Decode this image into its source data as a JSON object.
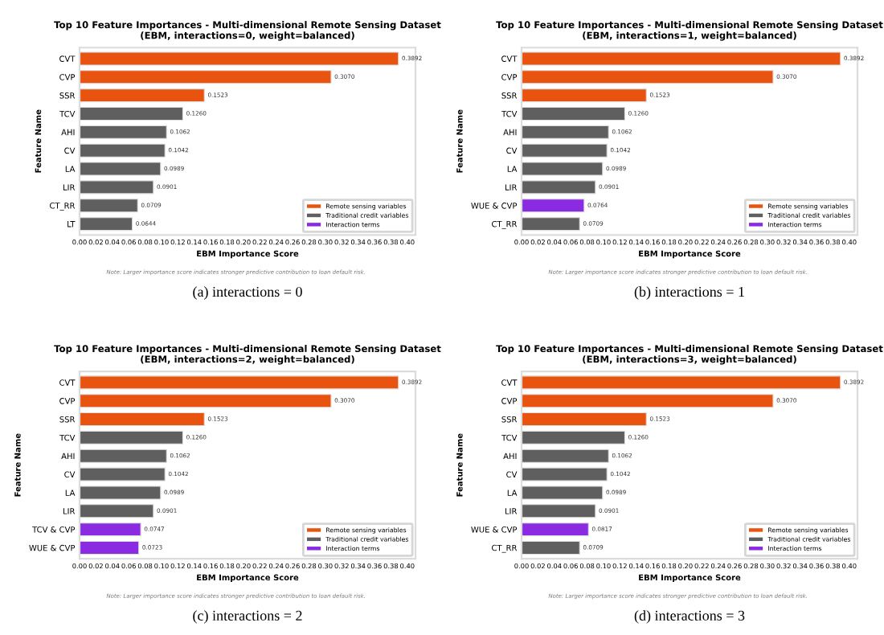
{
  "chart_data": [
    {
      "type": "bar",
      "orientation": "horizontal",
      "title": "Top 10 Feature Importances - Multi-dimensional Remote Sensing Dataset\n(EBM, interactions=0, weight=balanced)",
      "xlabel": "EBM Importance Score",
      "ylabel": "Feature Name",
      "categories": [
        "CVT",
        "CVP",
        "SSR",
        "TCV",
        "AHI",
        "CV",
        "LA",
        "LIR",
        "CT_RR",
        "LT"
      ],
      "series": [
        {
          "name": "Remote sensing variables",
          "color": "#e8540f",
          "values": [
            0.3892,
            0.307,
            0.1523,
            null,
            null,
            null,
            null,
            null,
            null,
            null
          ],
          "value_labels": [
            "0.3892",
            "0.3070",
            "0.1523",
            null,
            null,
            null,
            null,
            null,
            null,
            null
          ]
        },
        {
          "name": "Traditional credit variables",
          "color": "#5f5f5f",
          "values": [
            null,
            null,
            null,
            0.126,
            0.1062,
            0.1042,
            0.0989,
            0.0901,
            0.0709,
            0.0644
          ],
          "value_labels": [
            null,
            null,
            null,
            "0.1260",
            "0.1062",
            "0.1042",
            "0.0989",
            "0.0901",
            "0.0709",
            "0.0644"
          ]
        },
        {
          "name": "Interaction terms",
          "color": "#8a2be2",
          "values": [
            null,
            null,
            null,
            null,
            null,
            null,
            null,
            null,
            null,
            null
          ],
          "value_labels": [
            null,
            null,
            null,
            null,
            null,
            null,
            null,
            null,
            null,
            null
          ]
        }
      ],
      "xlim": [
        0,
        0.41
      ],
      "xticks": [
        {
          "value": 0,
          "label": "0.00"
        },
        {
          "value": 0.02,
          "label": "0.02"
        },
        {
          "value": 0.04,
          "label": "0.04"
        },
        {
          "value": 0.06,
          "label": "0.06"
        },
        {
          "value": 0.08,
          "label": "0.08"
        },
        {
          "value": 0.1,
          "label": "0.10"
        },
        {
          "value": 0.12,
          "label": "0.12"
        },
        {
          "value": 0.14,
          "label": "0.14"
        },
        {
          "value": 0.16,
          "label": "0.16"
        },
        {
          "value": 0.18,
          "label": "0.18"
        },
        {
          "value": 0.2,
          "label": "0.20"
        },
        {
          "value": 0.22,
          "label": "0.22"
        },
        {
          "value": 0.24,
          "label": "0.24"
        },
        {
          "value": 0.26,
          "label": "0.26"
        },
        {
          "value": 0.28,
          "label": "0.28"
        },
        {
          "value": 0.3,
          "label": "0.30"
        },
        {
          "value": 0.32,
          "label": "0.32"
        },
        {
          "value": 0.34,
          "label": "0.34"
        },
        {
          "value": 0.36,
          "label": "0.36"
        },
        {
          "value": 0.38,
          "label": "0.38"
        },
        {
          "value": 0.4,
          "label": "0.40"
        }
      ],
      "legend": "bottom right",
      "grid": false,
      "annotations": [
        "Note: Larger importance score indicates stronger predictive contribution to loan default risk.",
        "(a) interactions = 0"
      ]
    },
    {
      "type": "bar",
      "orientation": "horizontal",
      "title": "Top 10 Feature Importances - Multi-dimensional Remote Sensing Dataset\n(EBM, interactions=1, weight=balanced)",
      "xlabel": "EBM Importance Score",
      "ylabel": "Feature Name",
      "categories": [
        "CVT",
        "CVP",
        "SSR",
        "TCV",
        "AHI",
        "CV",
        "LA",
        "LIR",
        "WUE & CVP",
        "CT_RR"
      ],
      "series": [
        {
          "name": "Remote sensing variables",
          "color": "#e8540f",
          "values": [
            0.3892,
            0.307,
            0.1523,
            null,
            null,
            null,
            null,
            null,
            null,
            null
          ],
          "value_labels": [
            "0.3892",
            "0.3070",
            "0.1523",
            null,
            null,
            null,
            null,
            null,
            null,
            null
          ]
        },
        {
          "name": "Traditional credit variables",
          "color": "#5f5f5f",
          "values": [
            null,
            null,
            null,
            0.126,
            0.1062,
            0.1042,
            0.0989,
            0.0901,
            null,
            0.0709
          ],
          "value_labels": [
            null,
            null,
            null,
            "0.1260",
            "0.1062",
            "0.1042",
            "0.0989",
            "0.0901",
            null,
            "0.0709"
          ]
        },
        {
          "name": "Interaction terms",
          "color": "#8a2be2",
          "values": [
            null,
            null,
            null,
            null,
            null,
            null,
            null,
            null,
            0.0764,
            null
          ],
          "value_labels": [
            null,
            null,
            null,
            null,
            null,
            null,
            null,
            null,
            "0.0764",
            null
          ]
        }
      ],
      "xlim": [
        0,
        0.41
      ],
      "xticks": [
        {
          "value": 0,
          "label": "0.00"
        },
        {
          "value": 0.02,
          "label": "0.02"
        },
        {
          "value": 0.04,
          "label": "0.04"
        },
        {
          "value": 0.06,
          "label": "0.06"
        },
        {
          "value": 0.08,
          "label": "0.08"
        },
        {
          "value": 0.1,
          "label": "0.10"
        },
        {
          "value": 0.12,
          "label": "0.12"
        },
        {
          "value": 0.14,
          "label": "0.14"
        },
        {
          "value": 0.16,
          "label": "0.16"
        },
        {
          "value": 0.18,
          "label": "0.18"
        },
        {
          "value": 0.2,
          "label": "0.20"
        },
        {
          "value": 0.22,
          "label": "0.22"
        },
        {
          "value": 0.24,
          "label": "0.24"
        },
        {
          "value": 0.26,
          "label": "0.26"
        },
        {
          "value": 0.28,
          "label": "0.28"
        },
        {
          "value": 0.3,
          "label": "0.30"
        },
        {
          "value": 0.32,
          "label": "0.32"
        },
        {
          "value": 0.34,
          "label": "0.34"
        },
        {
          "value": 0.36,
          "label": "0.36"
        },
        {
          "value": 0.38,
          "label": "0.38"
        },
        {
          "value": 0.4,
          "label": "0.40"
        }
      ],
      "legend": "bottom right",
      "grid": false,
      "annotations": [
        "Note: Larger importance score indicates stronger predictive contribution to loan default risk.",
        "(b) interactions = 1"
      ]
    },
    {
      "type": "bar",
      "orientation": "horizontal",
      "title": "Top 10 Feature Importances - Multi-dimensional Remote Sensing Dataset\n(EBM, interactions=2, weight=balanced)",
      "xlabel": "EBM Importance Score",
      "ylabel": "Feature Name",
      "categories": [
        "CVT",
        "CVP",
        "SSR",
        "TCV",
        "AHI",
        "CV",
        "LA",
        "LIR",
        "TCV & CVP",
        "WUE & CVP"
      ],
      "series": [
        {
          "name": "Remote sensing variables",
          "color": "#e8540f",
          "values": [
            0.3892,
            0.307,
            0.1523,
            null,
            null,
            null,
            null,
            null,
            null,
            null
          ],
          "value_labels": [
            "0.3892",
            "0.3070",
            "0.1523",
            null,
            null,
            null,
            null,
            null,
            null,
            null
          ]
        },
        {
          "name": "Traditional credit variables",
          "color": "#5f5f5f",
          "values": [
            null,
            null,
            null,
            0.126,
            0.1062,
            0.1042,
            0.0989,
            0.0901,
            null,
            null
          ],
          "value_labels": [
            null,
            null,
            null,
            "0.1260",
            "0.1062",
            "0.1042",
            "0.0989",
            "0.0901",
            null,
            null
          ]
        },
        {
          "name": "Interaction terms",
          "color": "#8a2be2",
          "values": [
            null,
            null,
            null,
            null,
            null,
            null,
            null,
            null,
            0.0747,
            0.0723
          ],
          "value_labels": [
            null,
            null,
            null,
            null,
            null,
            null,
            null,
            null,
            "0.0747",
            "0.0723"
          ]
        }
      ],
      "xlim": [
        0,
        0.41
      ],
      "xticks": [
        {
          "value": 0,
          "label": "0.00"
        },
        {
          "value": 0.02,
          "label": "0.02"
        },
        {
          "value": 0.04,
          "label": "0.04"
        },
        {
          "value": 0.06,
          "label": "0.06"
        },
        {
          "value": 0.08,
          "label": "0.08"
        },
        {
          "value": 0.1,
          "label": "0.10"
        },
        {
          "value": 0.12,
          "label": "0.12"
        },
        {
          "value": 0.14,
          "label": "0.14"
        },
        {
          "value": 0.16,
          "label": "0.16"
        },
        {
          "value": 0.18,
          "label": "0.18"
        },
        {
          "value": 0.2,
          "label": "0.20"
        },
        {
          "value": 0.22,
          "label": "0.22"
        },
        {
          "value": 0.24,
          "label": "0.24"
        },
        {
          "value": 0.26,
          "label": "0.26"
        },
        {
          "value": 0.28,
          "label": "0.28"
        },
        {
          "value": 0.3,
          "label": "0.30"
        },
        {
          "value": 0.32,
          "label": "0.32"
        },
        {
          "value": 0.34,
          "label": "0.34"
        },
        {
          "value": 0.36,
          "label": "0.36"
        },
        {
          "value": 0.38,
          "label": "0.38"
        },
        {
          "value": 0.4,
          "label": "0.40"
        }
      ],
      "legend": "bottom right",
      "grid": false,
      "annotations": [
        "Note: Larger importance score indicates stronger predictive contribution to loan default risk.",
        "(c) interactions = 2"
      ]
    },
    {
      "type": "bar",
      "orientation": "horizontal",
      "title": "Top 10 Feature Importances - Multi-dimensional Remote Sensing Dataset\n(EBM, interactions=3, weight=balanced)",
      "xlabel": "EBM Importance Score",
      "ylabel": "Feature Name",
      "categories": [
        "CVT",
        "CVP",
        "SSR",
        "TCV",
        "AHI",
        "CV",
        "LA",
        "LIR",
        "WUE & CVP",
        "CT_RR"
      ],
      "series": [
        {
          "name": "Remote sensing variables",
          "color": "#e8540f",
          "values": [
            0.3892,
            0.307,
            0.1523,
            null,
            null,
            null,
            null,
            null,
            null,
            null
          ],
          "value_labels": [
            "0.3892",
            "0.3070",
            "0.1523",
            null,
            null,
            null,
            null,
            null,
            null,
            null
          ]
        },
        {
          "name": "Traditional credit variables",
          "color": "#5f5f5f",
          "values": [
            null,
            null,
            null,
            0.126,
            0.1062,
            0.1042,
            0.0989,
            0.0901,
            null,
            0.0709
          ],
          "value_labels": [
            null,
            null,
            null,
            "0.1260",
            "0.1062",
            "0.1042",
            "0.0989",
            "0.0901",
            null,
            "0.0709"
          ]
        },
        {
          "name": "Interaction terms",
          "color": "#8a2be2",
          "values": [
            null,
            null,
            null,
            null,
            null,
            null,
            null,
            null,
            0.0817,
            null
          ],
          "value_labels": [
            null,
            null,
            null,
            null,
            null,
            null,
            null,
            null,
            "0.0817",
            null
          ]
        }
      ],
      "xlim": [
        0,
        0.41
      ],
      "xticks": [
        {
          "value": 0,
          "label": "0.00"
        },
        {
          "value": 0.02,
          "label": "0.02"
        },
        {
          "value": 0.04,
          "label": "0.04"
        },
        {
          "value": 0.06,
          "label": "0.06"
        },
        {
          "value": 0.08,
          "label": "0.08"
        },
        {
          "value": 0.1,
          "label": "0.10"
        },
        {
          "value": 0.12,
          "label": "0.12"
        },
        {
          "value": 0.14,
          "label": "0.14"
        },
        {
          "value": 0.16,
          "label": "0.16"
        },
        {
          "value": 0.18,
          "label": "0.18"
        },
        {
          "value": 0.2,
          "label": "0.20"
        },
        {
          "value": 0.22,
          "label": "0.22"
        },
        {
          "value": 0.24,
          "label": "0.24"
        },
        {
          "value": 0.26,
          "label": "0.26"
        },
        {
          "value": 0.28,
          "label": "0.28"
        },
        {
          "value": 0.3,
          "label": "0.30"
        },
        {
          "value": 0.32,
          "label": "0.32"
        },
        {
          "value": 0.34,
          "label": "0.34"
        },
        {
          "value": 0.36,
          "label": "0.36"
        },
        {
          "value": 0.38,
          "label": "0.38"
        },
        {
          "value": 0.4,
          "label": "0.40"
        }
      ],
      "legend": "bottom right",
      "grid": false,
      "annotations": [
        "Note: Larger importance score indicates stronger predictive contribution to loan default risk.",
        "(d) interactions = 3"
      ]
    }
  ]
}
